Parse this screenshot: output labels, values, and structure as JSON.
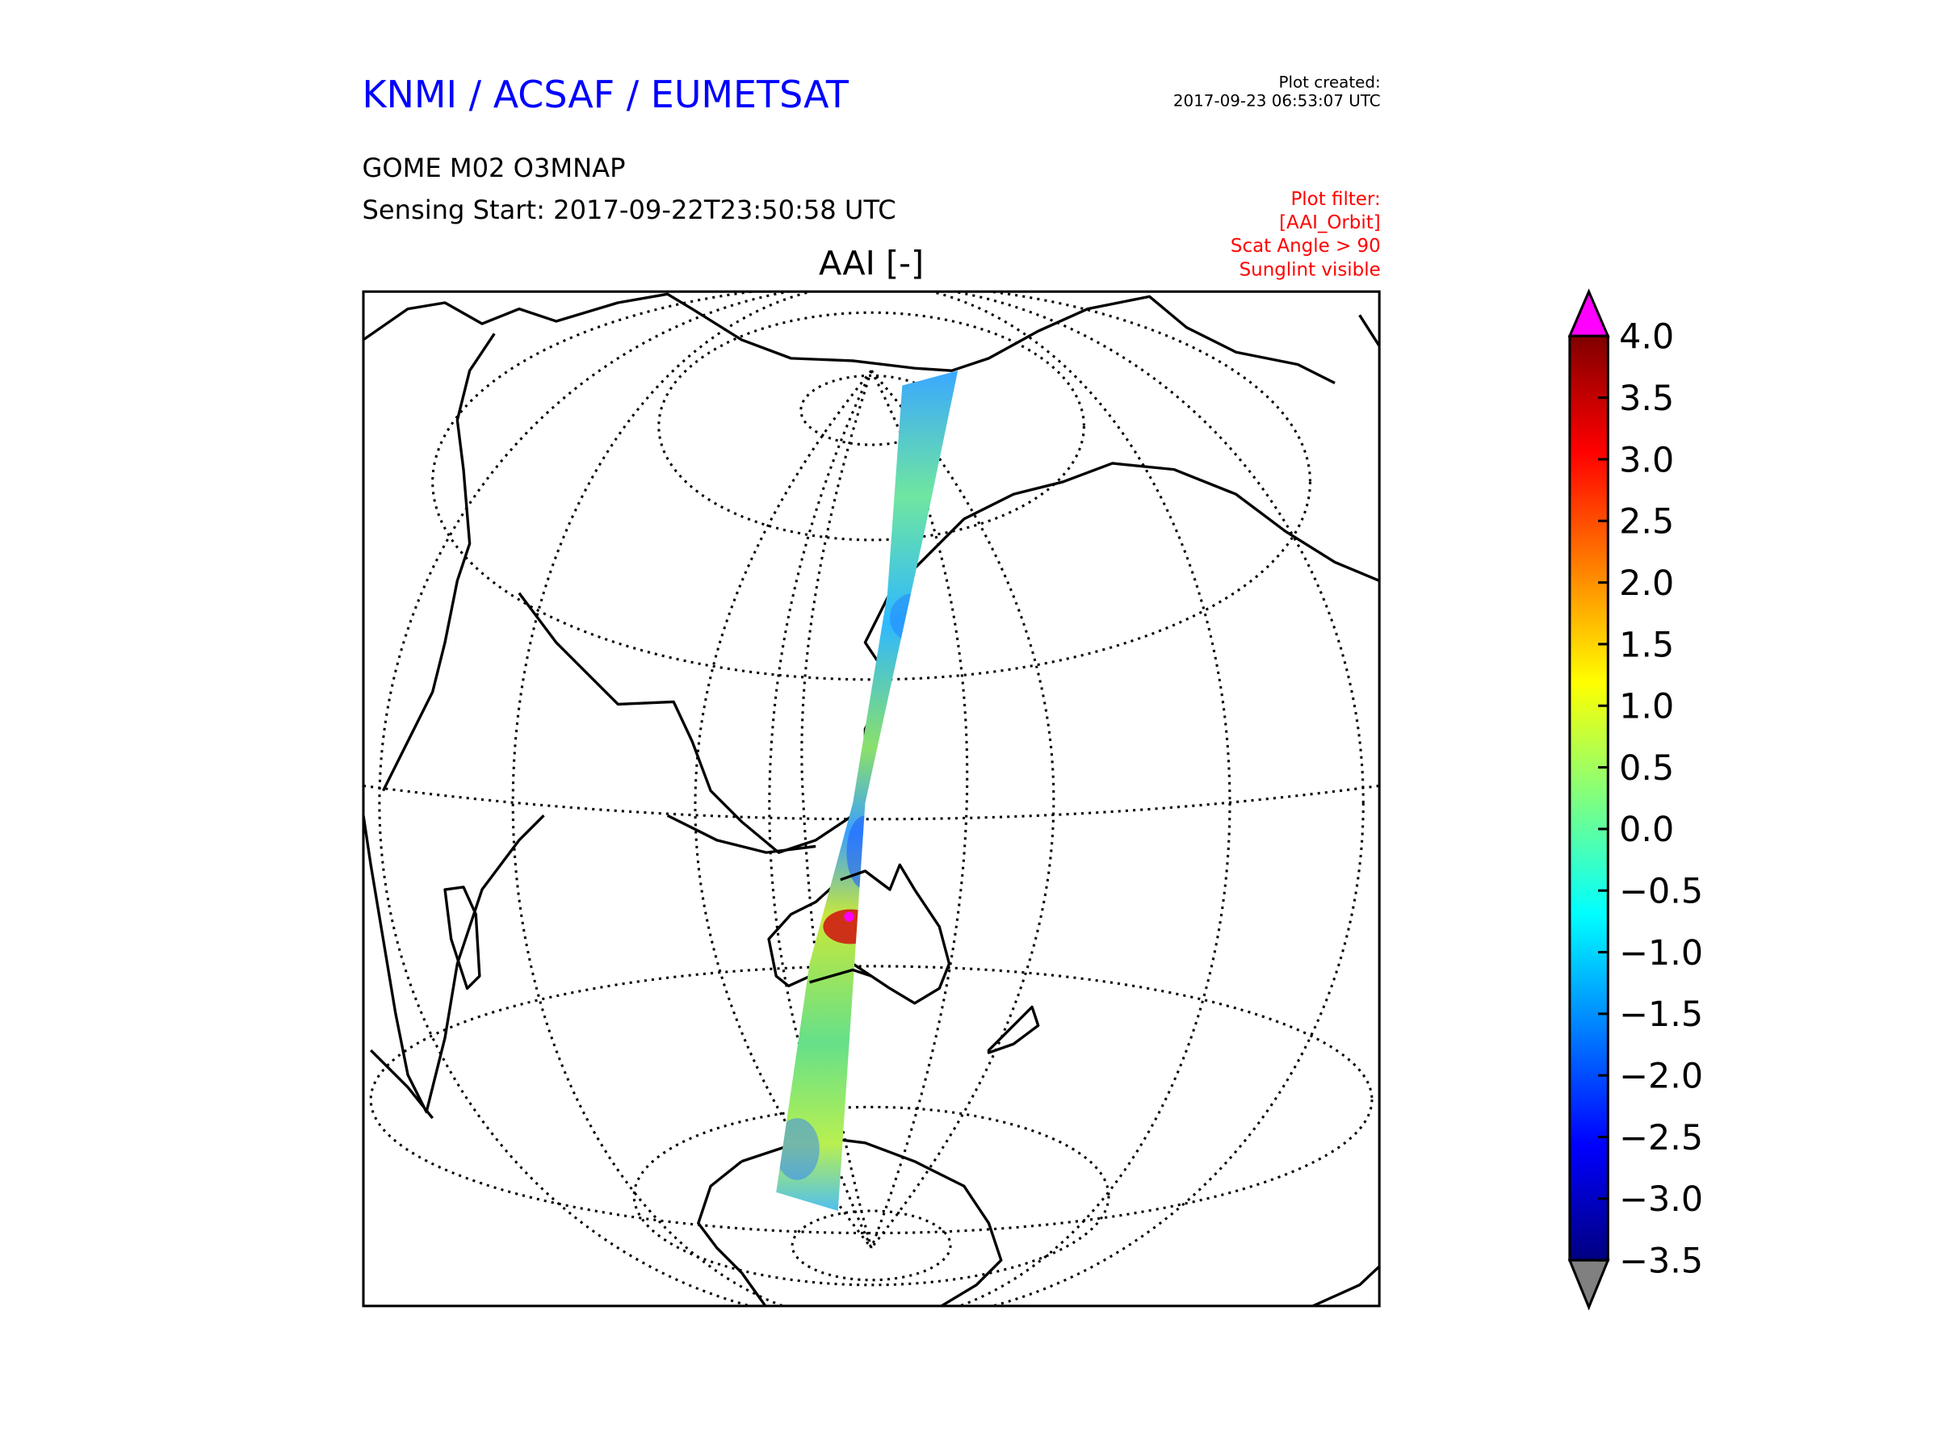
{
  "header": {
    "org_title": "KNMI / ACSAF / EUMETSAT",
    "product": "GOME M02 O3MNAP",
    "sensing_start": "Sensing Start: 2017-09-22T23:50:58 UTC",
    "plot_created_label": "Plot created:",
    "plot_created_value": "2017-09-23 06:53:07 UTC",
    "filter_lines": [
      "Plot filter:",
      "[AAI_Orbit]",
      "Scat Angle > 90",
      "Sunglint visible"
    ]
  },
  "map": {
    "title": "AAI [-]"
  },
  "colors": {
    "title_blue": "#0000ff",
    "filter_red": "#ff0000",
    "over_color": "#ff00ff",
    "under_color": "#808080"
  },
  "chart_data": {
    "type": "heatmap",
    "title": "AAI [-]",
    "colormap": "jet",
    "colorbar": {
      "min": -3.5,
      "max": 4.0,
      "ticks": [
        "4.0",
        "3.5",
        "3.0",
        "2.5",
        "2.0",
        "1.5",
        "1.0",
        "0.5",
        "0.0",
        "−0.5",
        "−1.0",
        "−1.5",
        "−2.0",
        "−2.5",
        "−3.0",
        "−3.5"
      ],
      "extend": "both"
    }
  }
}
